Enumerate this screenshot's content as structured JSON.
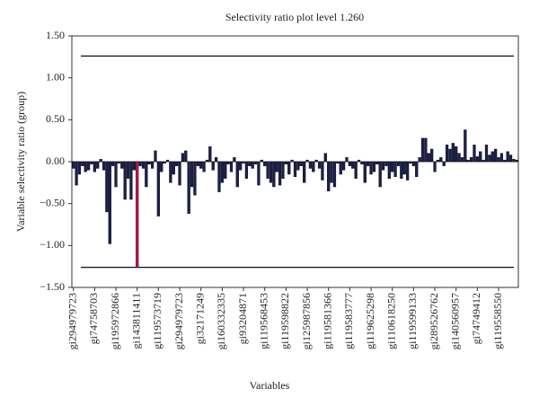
{
  "chart_data": {
    "type": "bar",
    "title": "Selectivity ratio plot level 1.260",
    "x_label": "Variables",
    "y_label": "Variable selectivity ratio (group)",
    "categories": [
      "gi294979723",
      null,
      null,
      null,
      null,
      null,
      null,
      "gi74758703",
      null,
      null,
      null,
      null,
      null,
      null,
      "gi195972866",
      null,
      null,
      null,
      null,
      null,
      null,
      "gi143811411",
      null,
      null,
      null,
      null,
      null,
      null,
      "gi119573719",
      null,
      null,
      null,
      null,
      null,
      null,
      "gi294979723",
      null,
      null,
      null,
      null,
      null,
      null,
      "gi32171249",
      null,
      null,
      null,
      null,
      null,
      null,
      "gi160332335",
      null,
      null,
      null,
      null,
      null,
      null,
      "gi93204871",
      null,
      null,
      null,
      null,
      null,
      null,
      "gi119568453",
      null,
      null,
      null,
      null,
      null,
      null,
      "gi119598822",
      null,
      null,
      null,
      null,
      null,
      null,
      "gi125987856",
      null,
      null,
      null,
      null,
      null,
      null,
      "gi119581366",
      null,
      null,
      null,
      null,
      null,
      null,
      "gi119583777",
      null,
      null,
      null,
      null,
      null,
      null,
      "gi119625298",
      null,
      null,
      null,
      null,
      null,
      null,
      "gi110618250",
      null,
      null,
      null,
      null,
      null,
      null,
      "gi119599133",
      null,
      null,
      null,
      null,
      null,
      null,
      "gi289526762",
      null,
      null,
      null,
      null,
      null,
      null,
      "gi140560957",
      null,
      null,
      null,
      null,
      null,
      null,
      "gi74749412",
      null,
      null,
      null,
      null,
      null,
      null,
      "gi119558550",
      null,
      null,
      null,
      null,
      null,
      null
    ],
    "values": [
      -0.08,
      -0.28,
      -0.15,
      -0.05,
      -0.12,
      -0.1,
      -0.03,
      -0.12,
      -0.08,
      0.03,
      -0.1,
      -0.6,
      -0.98,
      -0.05,
      -0.3,
      -0.02,
      -0.08,
      -0.45,
      -0.2,
      -0.45,
      -0.1,
      -1.26,
      -0.05,
      -0.08,
      -0.3,
      -0.03,
      -0.08,
      0.13,
      -0.65,
      -0.12,
      -0.02,
      0.02,
      -0.25,
      -0.15,
      -0.05,
      -0.28,
      0.1,
      0.13,
      -0.62,
      -0.3,
      -0.4,
      -0.05,
      -0.08,
      -0.12,
      0.02,
      0.18,
      -0.1,
      0.05,
      -0.36,
      -0.25,
      -0.2,
      -0.03,
      -0.12,
      0.05,
      -0.3,
      -0.1,
      -0.02,
      -0.2,
      -0.05,
      -0.08,
      -0.03,
      -0.28,
      0.02,
      -0.05,
      -0.2,
      -0.25,
      -0.3,
      -0.12,
      -0.28,
      -0.2,
      -0.03,
      -0.15,
      0.02,
      -0.18,
      -0.1,
      -0.05,
      -0.25,
      0.02,
      -0.08,
      -0.12,
      0.02,
      -0.08,
      -0.22,
      0.1,
      -0.35,
      -0.25,
      -0.3,
      -0.02,
      -0.15,
      -0.1,
      0.05,
      -0.05,
      -0.08,
      -0.2,
      0.02,
      -0.03,
      -0.25,
      -0.05,
      -0.15,
      -0.12,
      -0.03,
      -0.3,
      -0.1,
      -0.05,
      -0.2,
      -0.12,
      -0.18,
      -0.05,
      -0.2,
      -0.15,
      -0.22,
      -0.02,
      -0.05,
      -0.18,
      0.05,
      0.28,
      0.28,
      0.1,
      0.15,
      -0.12,
      0.02,
      0.05,
      -0.05,
      0.2,
      0.15,
      0.22,
      0.18,
      0.1,
      0.05,
      0.38,
      0.02,
      0.05,
      0.2,
      0.06,
      0.12,
      0.02,
      0.2,
      0.08,
      0.12,
      0.15,
      0.05,
      0.1,
      0.02,
      0.12,
      0.08,
      0.03,
      0.02
    ],
    "color": "#1b1f4f",
    "highlight_category": "gi143811411",
    "highlight_color": "#c8164b",
    "threshold_lines": [
      1.26,
      -1.26
    ],
    "ylim": [
      -1.5,
      1.5
    ],
    "yticks": [
      {
        "value": -1.5,
        "label": "−1.50"
      },
      {
        "value": -1,
        "label": "−1.00"
      },
      {
        "value": -0.5,
        "label": "−0.50"
      },
      {
        "value": 0,
        "label": "0.00"
      },
      {
        "value": 0.5,
        "label": "0.50"
      },
      {
        "value": 1,
        "label": "1.00"
      },
      {
        "value": 1.5,
        "label": "1.50"
      }
    ],
    "grid": false
  }
}
